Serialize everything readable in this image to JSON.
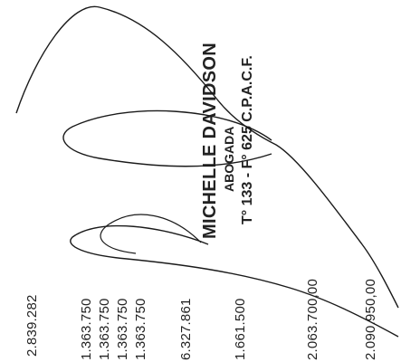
{
  "stamp": {
    "name": "MICHELLE DAVIDSON",
    "title": "ABOGADA",
    "registration": "T° 133 - F° 625 C.P.A.C.F."
  },
  "amounts": [
    "2.839.282",
    "1.363.750",
    "1.363.750",
    "1.363.750",
    "1.363.750",
    "6.327.861",
    "1.661.500",
    "2.063.700,00",
    "2.090.950,00"
  ],
  "colors": {
    "ink": "#222222",
    "paper": "#ffffff",
    "signature": "#1a1a1a"
  }
}
